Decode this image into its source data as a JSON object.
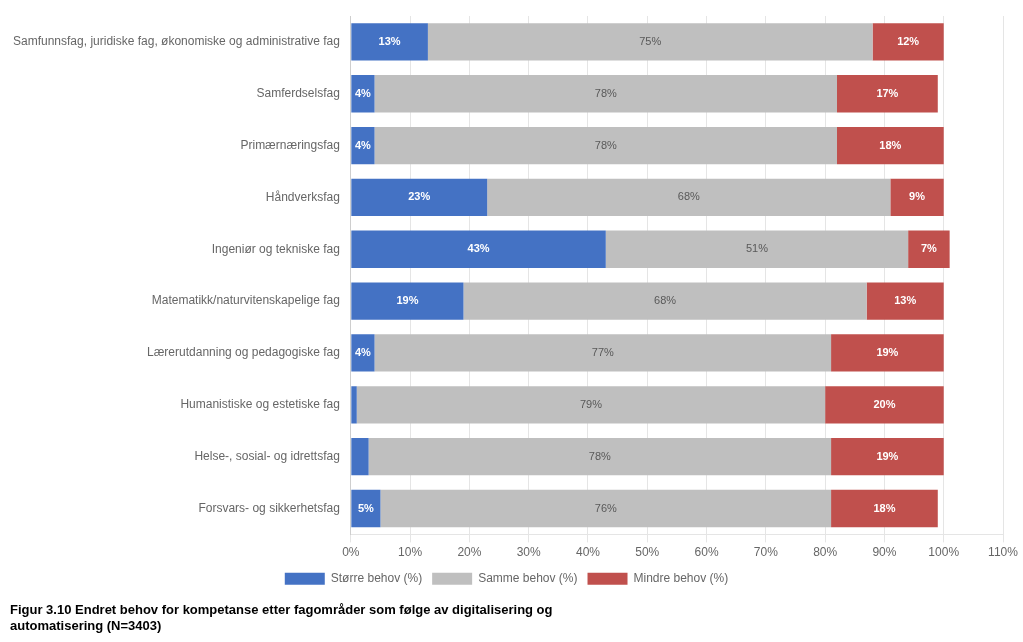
{
  "chart_data": {
    "type": "bar",
    "orientation": "horizontal",
    "stacked": true,
    "categories": [
      "Samfunnsfag, juridiske fag, økonomiske og administrative fag",
      "Samferdselsfag",
      "Primærnæringsfag",
      "Håndverksfag",
      "Ingeniør og tekniske fag",
      "Matematikk/naturvitenskapelige fag",
      "Lærerutdanning og pedagogiske fag",
      "Humanistiske og estetiske fag",
      "Helse-, sosial- og idrettsfag",
      "Forsvars- og sikkerhetsfag"
    ],
    "series": [
      {
        "name": "Større behov (%)",
        "color": "#4472C4",
        "values": [
          13,
          4,
          4,
          23,
          43,
          19,
          4,
          1,
          3,
          5
        ],
        "value_labels": [
          "13%",
          "4%",
          "4%",
          "23%",
          "43%",
          "19%",
          "4%",
          null,
          null,
          "5%"
        ]
      },
      {
        "name": "Samme behov (%)",
        "color": "#BFBFBF",
        "values": [
          75,
          78,
          78,
          68,
          51,
          68,
          77,
          79,
          78,
          76
        ],
        "value_labels": [
          "75%",
          "78%",
          "78%",
          "68%",
          "51%",
          "68%",
          "77%",
          "79%",
          "78%",
          "76%"
        ]
      },
      {
        "name": "Mindre behov (%)",
        "color": "#C0504D",
        "values": [
          12,
          17,
          18,
          9,
          7,
          13,
          19,
          20,
          19,
          18
        ],
        "value_labels": [
          "12%",
          "17%",
          "18%",
          "9%",
          "7%",
          "13%",
          "19%",
          "20%",
          "19%",
          "18%"
        ]
      }
    ],
    "xlim": [
      0,
      110
    ],
    "xticks": [
      {
        "value": 0,
        "label": "0%"
      },
      {
        "value": 10,
        "label": "10%"
      },
      {
        "value": 20,
        "label": "20%"
      },
      {
        "value": 30,
        "label": "30%"
      },
      {
        "value": 40,
        "label": "40%"
      },
      {
        "value": 50,
        "label": "50%"
      },
      {
        "value": 60,
        "label": "60%"
      },
      {
        "value": 70,
        "label": "70%"
      },
      {
        "value": 80,
        "label": "80%"
      },
      {
        "value": 90,
        "label": "90%"
      },
      {
        "value": 100,
        "label": "100%"
      },
      {
        "value": 110,
        "label": "110%"
      }
    ],
    "grid": true,
    "legend": "bottom",
    "data_labels": true,
    "annotations": [
      "Figur 3.10 Endret behov for kompetanse etter fagområder som følge av digitalisering og",
      "automatisering (N=3403)"
    ]
  }
}
